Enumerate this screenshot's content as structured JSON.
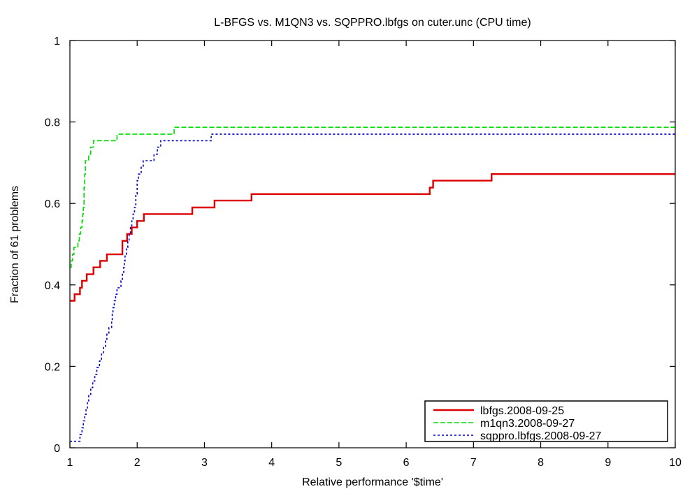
{
  "chart_data": {
    "type": "line",
    "title": "L-BFGS vs. M1QN3 vs. SQPPRO.lbfgs on cuter.unc (CPU time)",
    "xlabel": "Relative performance '$time'",
    "ylabel": "Fraction of 61 problems",
    "xlim": [
      1,
      10
    ],
    "ylim": [
      0,
      1
    ],
    "xticks": [
      "1",
      "2",
      "3",
      "4",
      "5",
      "6",
      "7",
      "8",
      "9",
      "10"
    ],
    "yticks": [
      "0",
      "0.2",
      "0.4",
      "0.6",
      "0.8",
      "1"
    ],
    "grid": false,
    "legend_position": "bottom-right",
    "series": [
      {
        "name": "lbfgs.2008-09-25",
        "color": "#dd0000",
        "style": "solid",
        "points": [
          [
            1.0,
            0.361
          ],
          [
            1.07,
            0.377
          ],
          [
            1.15,
            0.393
          ],
          [
            1.18,
            0.41
          ],
          [
            1.25,
            0.426
          ],
          [
            1.35,
            0.443
          ],
          [
            1.45,
            0.459
          ],
          [
            1.55,
            0.475
          ],
          [
            1.78,
            0.508
          ],
          [
            1.85,
            0.525
          ],
          [
            1.92,
            0.541
          ],
          [
            2.0,
            0.557
          ],
          [
            2.1,
            0.574
          ],
          [
            2.82,
            0.59
          ],
          [
            3.15,
            0.607
          ],
          [
            3.7,
            0.623
          ],
          [
            6.35,
            0.639
          ],
          [
            6.4,
            0.656
          ],
          [
            7.27,
            0.672
          ],
          [
            10.0,
            0.672
          ]
        ]
      },
      {
        "name": "m1qn3.2008-09-27",
        "color": "#00dd00",
        "style": "dashed",
        "points": [
          [
            1.0,
            0.443
          ],
          [
            1.02,
            0.459
          ],
          [
            1.04,
            0.475
          ],
          [
            1.06,
            0.492
          ],
          [
            1.12,
            0.508
          ],
          [
            1.14,
            0.525
          ],
          [
            1.16,
            0.541
          ],
          [
            1.18,
            0.557
          ],
          [
            1.19,
            0.574
          ],
          [
            1.2,
            0.59
          ],
          [
            1.21,
            0.639
          ],
          [
            1.22,
            0.672
          ],
          [
            1.23,
            0.705
          ],
          [
            1.28,
            0.721
          ],
          [
            1.31,
            0.738
          ],
          [
            1.35,
            0.754
          ],
          [
            1.7,
            0.77
          ],
          [
            2.55,
            0.787
          ],
          [
            10.0,
            0.787
          ]
        ]
      },
      {
        "name": "sqppro.lbfgs.2008-09-27",
        "color": "#0000cc",
        "style": "dotted",
        "points": [
          [
            1.0,
            0.016
          ],
          [
            1.15,
            0.033
          ],
          [
            1.18,
            0.049
          ],
          [
            1.2,
            0.066
          ],
          [
            1.22,
            0.082
          ],
          [
            1.24,
            0.098
          ],
          [
            1.26,
            0.115
          ],
          [
            1.28,
            0.131
          ],
          [
            1.31,
            0.148
          ],
          [
            1.34,
            0.164
          ],
          [
            1.37,
            0.18
          ],
          [
            1.4,
            0.197
          ],
          [
            1.44,
            0.213
          ],
          [
            1.47,
            0.23
          ],
          [
            1.5,
            0.246
          ],
          [
            1.53,
            0.262
          ],
          [
            1.55,
            0.279
          ],
          [
            1.58,
            0.295
          ],
          [
            1.62,
            0.311
          ],
          [
            1.63,
            0.328
          ],
          [
            1.64,
            0.344
          ],
          [
            1.66,
            0.361
          ],
          [
            1.68,
            0.377
          ],
          [
            1.7,
            0.393
          ],
          [
            1.76,
            0.41
          ],
          [
            1.78,
            0.426
          ],
          [
            1.8,
            0.443
          ],
          [
            1.81,
            0.459
          ],
          [
            1.82,
            0.475
          ],
          [
            1.84,
            0.492
          ],
          [
            1.86,
            0.508
          ],
          [
            1.88,
            0.525
          ],
          [
            1.9,
            0.541
          ],
          [
            1.92,
            0.557
          ],
          [
            1.94,
            0.574
          ],
          [
            1.96,
            0.59
          ],
          [
            1.98,
            0.623
          ],
          [
            2.0,
            0.656
          ],
          [
            2.02,
            0.672
          ],
          [
            2.06,
            0.689
          ],
          [
            2.09,
            0.705
          ],
          [
            2.25,
            0.721
          ],
          [
            2.3,
            0.738
          ],
          [
            2.35,
            0.754
          ],
          [
            3.1,
            0.77
          ],
          [
            10.0,
            0.77
          ]
        ]
      }
    ]
  }
}
